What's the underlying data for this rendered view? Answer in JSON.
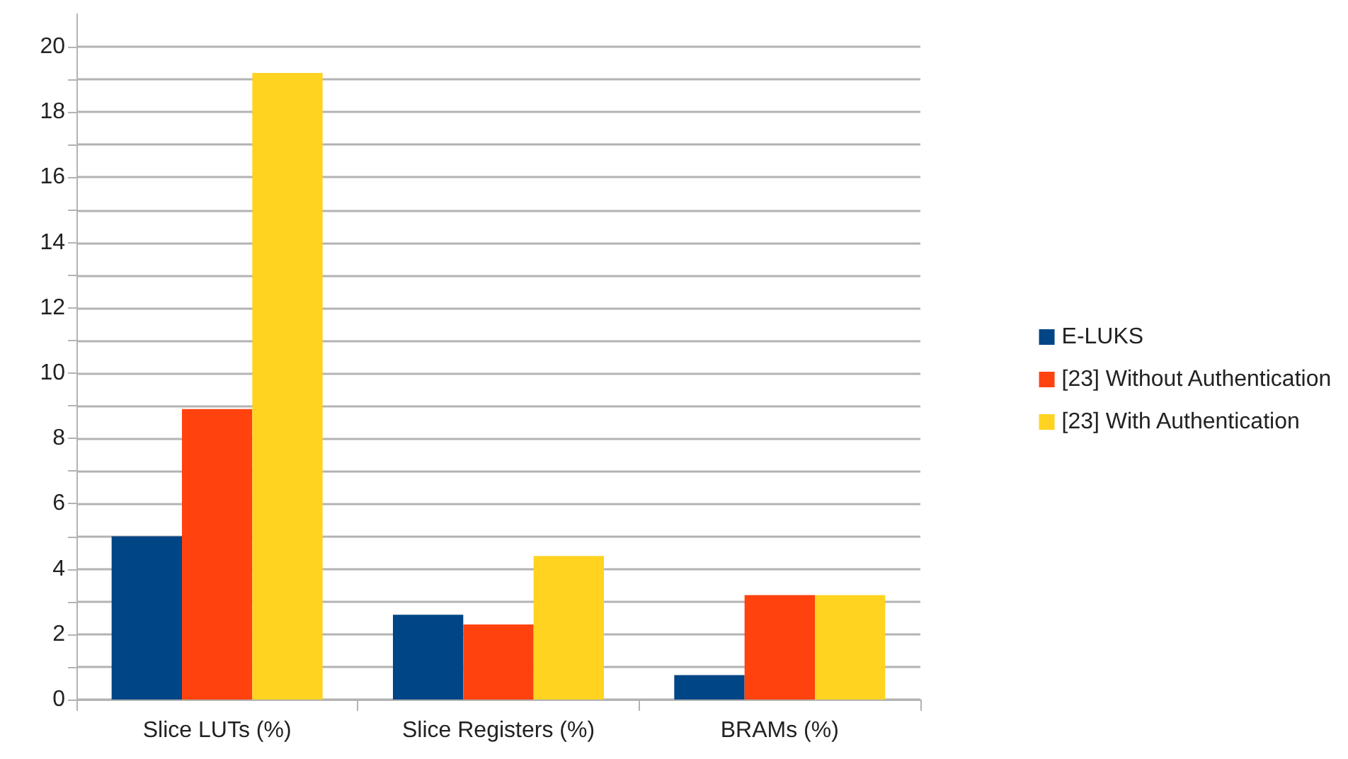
{
  "chart_data": {
    "type": "bar",
    "categories": [
      "Slice LUTs (%)",
      "Slice Registers (%)",
      "BRAMs (%)"
    ],
    "series": [
      {
        "name": "E-LUKS",
        "color": "#004586",
        "values": [
          5.0,
          2.6,
          0.75
        ]
      },
      {
        "name": "[23] Without Authentication",
        "color": "#ff420e",
        "values": [
          8.9,
          2.3,
          3.2
        ]
      },
      {
        "name": "[23] With Authentication",
        "color": "#ffd320",
        "values": [
          19.2,
          4.4,
          3.2
        ]
      }
    ],
    "ylim": [
      0,
      21
    ],
    "yticks": [
      0,
      {
        "value": 1,
        "label": null
      },
      2,
      {
        "value": 3,
        "label": null
      },
      4,
      {
        "value": 5,
        "label": null
      },
      6,
      {
        "value": 7,
        "label": null
      },
      8,
      {
        "value": 9,
        "label": null
      },
      10,
      {
        "value": 11,
        "label": null
      },
      12,
      {
        "value": 13,
        "label": null
      },
      14,
      {
        "value": 15,
        "label": null
      },
      16,
      {
        "value": 17,
        "label": null
      },
      18,
      {
        "value": 19,
        "label": null
      },
      20
    ],
    "grid": true,
    "legend": "right"
  }
}
